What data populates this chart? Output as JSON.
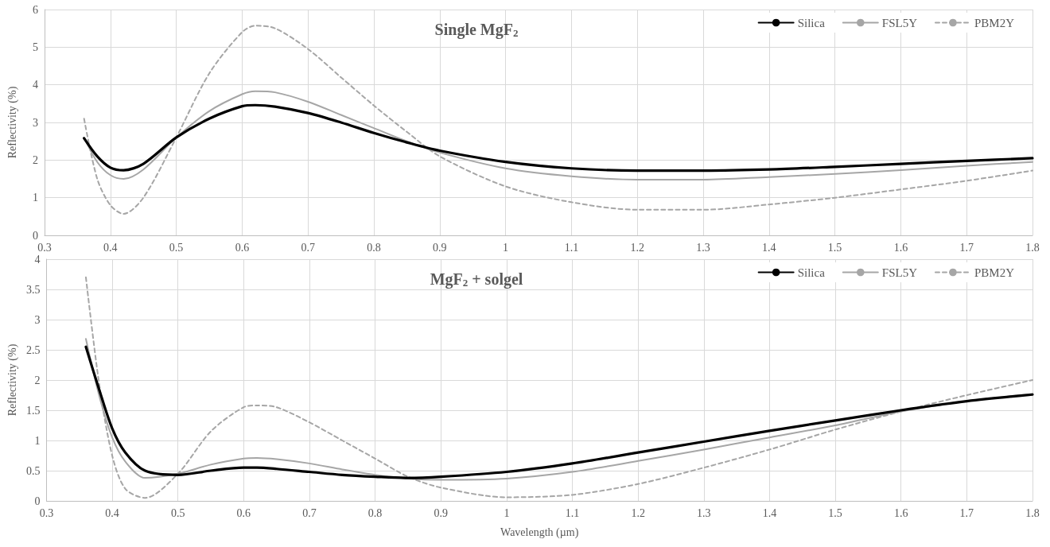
{
  "chart_data": [
    {
      "type": "line",
      "title": "Single MgF$_{2}$",
      "ylabel": "Reflectivity (%)",
      "xlim": [
        0.3,
        1.8
      ],
      "xticks": [
        0.3,
        0.4,
        0.5,
        0.6,
        0.7,
        0.8,
        0.9,
        1,
        1.1,
        1.2,
        1.3,
        1.4,
        1.5,
        1.6,
        1.7,
        1.8
      ],
      "ylim": [
        0,
        6
      ],
      "yticks": [
        0,
        1,
        2,
        3,
        4,
        5,
        6
      ],
      "grid": true,
      "legend": "top right",
      "marker": "none",
      "x": [
        0.36,
        0.38,
        0.4,
        0.42,
        0.45,
        0.5,
        0.55,
        0.6,
        0.62,
        0.65,
        0.7,
        0.75,
        0.8,
        0.85,
        0.9,
        1.0,
        1.1,
        1.2,
        1.3,
        1.4,
        1.5,
        1.6,
        1.7,
        1.8
      ],
      "series": [
        {
          "name": "Silica",
          "color": "#000000",
          "line_style": "solid",
          "values": [
            2.58,
            2.1,
            1.8,
            1.73,
            1.9,
            2.6,
            3.1,
            3.43,
            3.46,
            3.42,
            3.25,
            3.0,
            2.72,
            2.47,
            2.25,
            1.95,
            1.78,
            1.72,
            1.72,
            1.75,
            1.82,
            1.9,
            1.98,
            2.05
          ]
        },
        {
          "name": "FSL5Y",
          "color": "#a6a6a6",
          "line_style": "solid",
          "values": [
            2.6,
            1.95,
            1.6,
            1.5,
            1.75,
            2.6,
            3.3,
            3.75,
            3.83,
            3.8,
            3.55,
            3.2,
            2.85,
            2.5,
            2.2,
            1.78,
            1.57,
            1.48,
            1.48,
            1.55,
            1.63,
            1.73,
            1.85,
            1.95
          ]
        },
        {
          "name": "PBM2Y",
          "color": "#a6a6a6",
          "line_style": "dashed",
          "values": [
            3.1,
            1.5,
            0.8,
            0.57,
            1.0,
            2.6,
            4.3,
            5.4,
            5.57,
            5.5,
            4.95,
            4.2,
            3.45,
            2.75,
            2.1,
            1.3,
            0.88,
            0.68,
            0.68,
            0.82,
            1.0,
            1.22,
            1.45,
            1.72
          ]
        }
      ]
    },
    {
      "type": "line",
      "title": "MgF$_{2}$ + solgel",
      "xlabel": "Wavelength (µm)",
      "ylabel": "Reflectivity (%)",
      "xlim": [
        0.3,
        1.8
      ],
      "xticks": [
        0.3,
        0.4,
        0.5,
        0.6,
        0.7,
        0.8,
        0.9,
        1,
        1.1,
        1.2,
        1.3,
        1.4,
        1.5,
        1.6,
        1.7,
        1.8
      ],
      "ylim": [
        0,
        4
      ],
      "yticks": [
        0,
        0.5,
        1,
        1.5,
        2,
        2.5,
        3,
        3.5,
        4
      ],
      "grid": true,
      "legend": "top right",
      "marker": "none",
      "x": [
        0.36,
        0.38,
        0.4,
        0.42,
        0.45,
        0.5,
        0.55,
        0.6,
        0.62,
        0.65,
        0.7,
        0.75,
        0.8,
        0.85,
        0.9,
        1.0,
        1.1,
        1.2,
        1.3,
        1.4,
        1.5,
        1.6,
        1.7,
        1.8
      ],
      "series": [
        {
          "name": "Silica",
          "color": "#000000",
          "line_style": "solid",
          "values": [
            2.55,
            1.85,
            1.2,
            0.8,
            0.5,
            0.43,
            0.5,
            0.55,
            0.55,
            0.53,
            0.48,
            0.43,
            0.4,
            0.38,
            0.4,
            0.48,
            0.62,
            0.8,
            0.98,
            1.16,
            1.33,
            1.5,
            1.65,
            1.76
          ]
        },
        {
          "name": "FSL5Y",
          "color": "#a6a6a6",
          "line_style": "solid",
          "values": [
            2.68,
            1.75,
            1.05,
            0.65,
            0.38,
            0.45,
            0.6,
            0.7,
            0.71,
            0.69,
            0.62,
            0.52,
            0.43,
            0.37,
            0.35,
            0.37,
            0.48,
            0.66,
            0.85,
            1.05,
            1.25,
            1.48,
            1.65,
            1.77
          ]
        },
        {
          "name": "PBM2Y",
          "color": "#a6a6a6",
          "line_style": "dashed",
          "values": [
            3.7,
            1.95,
            0.75,
            0.2,
            0.05,
            0.45,
            1.15,
            1.55,
            1.58,
            1.55,
            1.3,
            1.0,
            0.7,
            0.4,
            0.22,
            0.06,
            0.1,
            0.28,
            0.55,
            0.85,
            1.18,
            1.48,
            1.75,
            2.0
          ]
        }
      ]
    }
  ]
}
